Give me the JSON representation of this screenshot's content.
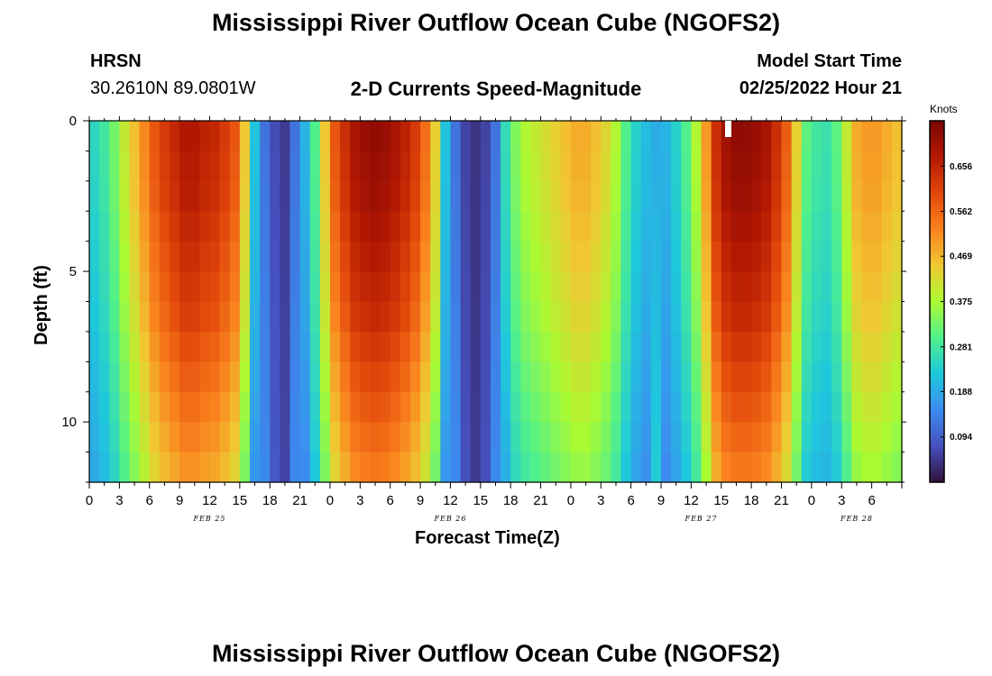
{
  "title": "Mississippi River Outflow Ocean Cube (NGOFS2)",
  "title_repeat": "Mississippi River Outflow Ocean Cube (NGOFS2)",
  "station": {
    "name": "HRSN",
    "coords": "30.2610N  89.0801W"
  },
  "subtitle": "2-D Currents Speed-Magnitude",
  "model_start": {
    "label": "Model Start Time",
    "value": "02/25/2022 Hour 21"
  },
  "chart_data": {
    "type": "heatmap",
    "title": "Mississippi River Outflow Ocean Cube (NGOFS2)",
    "subtitle": "2-D Currents Speed-Magnitude",
    "xlabel": "Forecast Time(Z)",
    "ylabel": "Depth (ft)",
    "x_range_hours": [
      0,
      81
    ],
    "x_tick_step_hours": 1.5,
    "y_range_ft": [
      0,
      12
    ],
    "y_ticks": [
      "0",
      "5",
      "10"
    ],
    "x_tick_labels": [
      "0",
      "3",
      "6",
      "9",
      "12",
      "15",
      "18",
      "21",
      "0",
      "3",
      "6",
      "9",
      "12",
      "15",
      "18",
      "21",
      "0",
      "3",
      "6",
      "9",
      "12",
      "15",
      "18",
      "21",
      "0",
      "3",
      "6"
    ],
    "date_labels": [
      {
        "label": "FEB 25",
        "hour": 12
      },
      {
        "label": "FEB 26",
        "hour": 36
      },
      {
        "label": "FEB 27",
        "hour": 61
      },
      {
        "label": "FEB 28",
        "hour": 76.5
      }
    ],
    "colorbar": {
      "label": "Knots",
      "min": 0.0,
      "max": 0.75,
      "ticks": [
        "0.656",
        "0.562",
        "0.469",
        "0.375",
        "0.281",
        "0.188",
        "0.094"
      ]
    },
    "surface_speed_knots": [
      0.25,
      0.28,
      0.33,
      0.4,
      0.46,
      0.52,
      0.58,
      0.62,
      0.65,
      0.68,
      0.68,
      0.66,
      0.65,
      0.62,
      0.58,
      0.45,
      0.22,
      0.12,
      0.07,
      0.05,
      0.12,
      0.2,
      0.3,
      0.45,
      0.58,
      0.64,
      0.69,
      0.71,
      0.72,
      0.71,
      0.69,
      0.66,
      0.62,
      0.55,
      0.44,
      0.22,
      0.12,
      0.06,
      0.04,
      0.06,
      0.12,
      0.26,
      0.34,
      0.38,
      0.4,
      0.42,
      0.44,
      0.46,
      0.48,
      0.48,
      0.46,
      0.43,
      0.38,
      0.3,
      0.24,
      0.21,
      0.19,
      0.2,
      0.24,
      0.3,
      0.38,
      0.5,
      0.64,
      0.7,
      0.72,
      0.72,
      0.71,
      0.69,
      0.64,
      0.57,
      0.44,
      0.31,
      0.28,
      0.27,
      0.31,
      0.4,
      0.48,
      0.5,
      0.5,
      0.48,
      0.46
    ],
    "depth_factor": [
      1.0,
      0.99,
      0.98,
      0.96,
      0.94,
      0.92,
      0.9,
      0.87,
      0.84,
      0.81,
      0.78,
      0.75
    ],
    "trough_depth_factor": [
      1.0,
      1.02,
      1.04,
      1.06,
      1.08,
      1.1,
      1.12,
      1.14,
      1.16,
      1.18,
      1.2,
      1.22
    ]
  }
}
